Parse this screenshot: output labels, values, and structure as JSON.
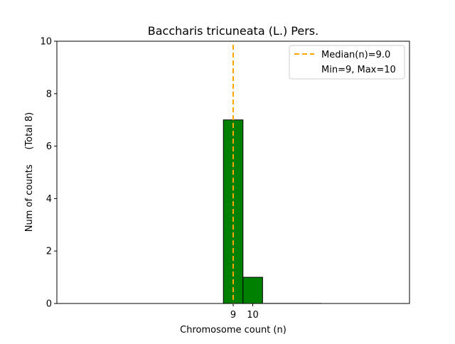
{
  "chart_data": {
    "type": "bar",
    "title": "Baccharis tricuneata (L.) Pers.",
    "xlabel": "Chromosome count (n)",
    "ylabel": "Num of counts     (Total 8)",
    "xlim": [
      0,
      18
    ],
    "ylim": [
      0,
      10
    ],
    "x": [
      9,
      10,
      11,
      12,
      13
    ],
    "values": [
      7,
      1,
      0,
      0,
      0
    ],
    "xticks": [
      "9",
      "10"
    ],
    "xtick_values": [
      9,
      10
    ],
    "yticks": [
      "0",
      "2",
      "4",
      "6",
      "8",
      "10"
    ],
    "ytick_values": [
      0,
      2,
      4,
      6,
      8,
      10
    ],
    "median": 9.0,
    "bar_color": "#008000",
    "median_color": "#FFA500",
    "grid": false,
    "legend": {
      "placement": "top-right",
      "entries": [
        "Median(n)=9.0",
        "Min=9, Max=10"
      ]
    }
  }
}
